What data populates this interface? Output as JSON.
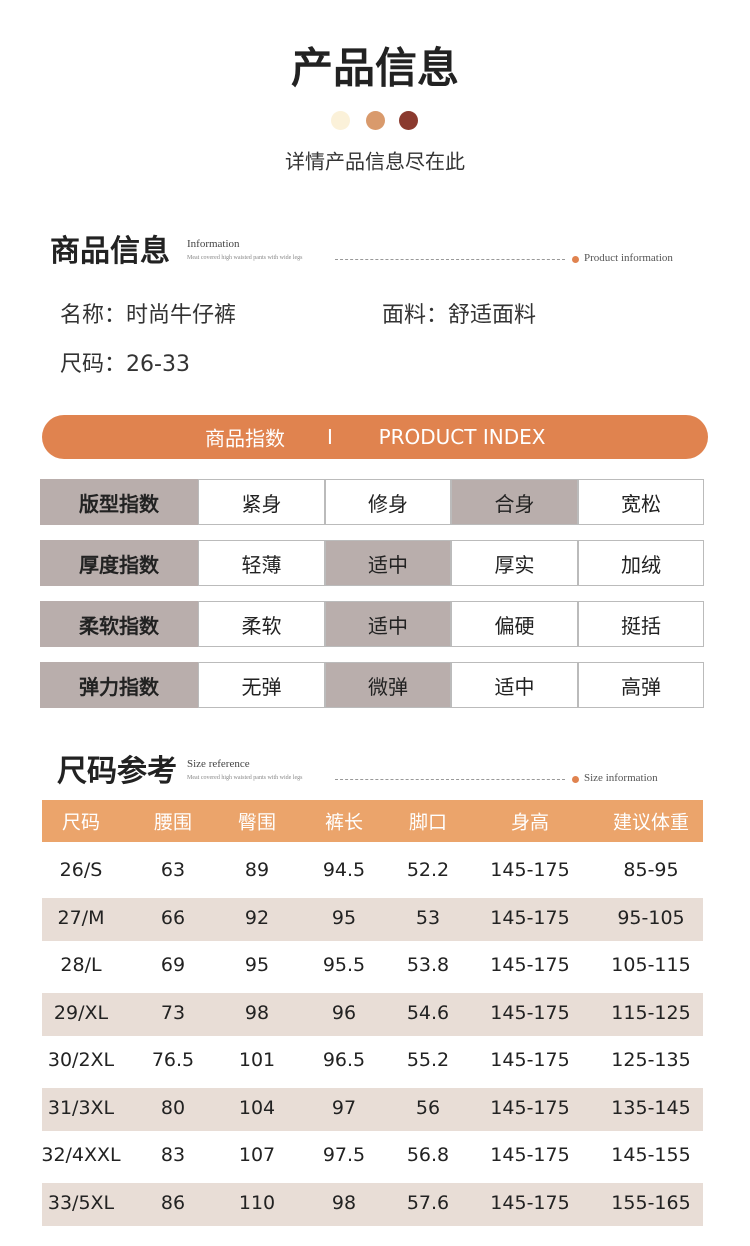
{
  "header": {
    "title": "产品信息",
    "subtitle": "详情产品信息尽在此"
  },
  "info": {
    "heading": "商品信息",
    "heading_en": "Information",
    "tagline": "Meat covered high waisted pants with wide legs",
    "side_label": "Product information",
    "fields": [
      {
        "label": "名称：",
        "value": "时尚牛仔裤"
      },
      {
        "label": "面料：",
        "value": "舒适面料"
      },
      {
        "label": "尺码：",
        "value": "26-33"
      }
    ]
  },
  "index": {
    "banner": {
      "cn": "商品指数",
      "sep": "I",
      "en": "PRODUCT INDEX"
    },
    "rows": [
      {
        "name": "版型指数",
        "options": [
          "紧身",
          "修身",
          "合身",
          "宽松"
        ],
        "selected": 2
      },
      {
        "name": "厚度指数",
        "options": [
          "轻薄",
          "适中",
          "厚实",
          "加绒"
        ],
        "selected": 1
      },
      {
        "name": "柔软指数",
        "options": [
          "柔软",
          "适中",
          "偏硬",
          "挺括"
        ],
        "selected": 1
      },
      {
        "name": "弹力指数",
        "options": [
          "无弹",
          "微弹",
          "适中",
          "高弹"
        ],
        "selected": 1
      }
    ]
  },
  "size": {
    "heading": "尺码参考",
    "heading_en": "Size reference",
    "tagline": "Meat covered high waisted pants with wide legs",
    "side_label": "Size information",
    "table": {
      "headers": [
        "尺码",
        "腰围",
        "臀围",
        "裤长",
        "脚口",
        "身高",
        "建议体重"
      ],
      "rows": [
        [
          "26/S",
          "63",
          "89",
          "94.5",
          "52.2",
          "145-175",
          "85-95"
        ],
        [
          "27/M",
          "66",
          "92",
          "95",
          "53",
          "145-175",
          "95-105"
        ],
        [
          "28/L",
          "69",
          "95",
          "95.5",
          "53.8",
          "145-175",
          "105-115"
        ],
        [
          "29/XL",
          "73",
          "98",
          "96",
          "54.6",
          "145-175",
          "115-125"
        ],
        [
          "30/2XL",
          "76.5",
          "101",
          "96.5",
          "55.2",
          "145-175",
          "125-135"
        ],
        [
          "31/3XL",
          "80",
          "104",
          "97",
          "56",
          "145-175",
          "135-145"
        ],
        [
          "32/4XXL",
          "83",
          "107",
          "97.5",
          "56.8",
          "145-175",
          "145-155"
        ],
        [
          "33/5XL",
          "86",
          "110",
          "98",
          "57.6",
          "145-175",
          "155-165"
        ]
      ]
    }
  }
}
